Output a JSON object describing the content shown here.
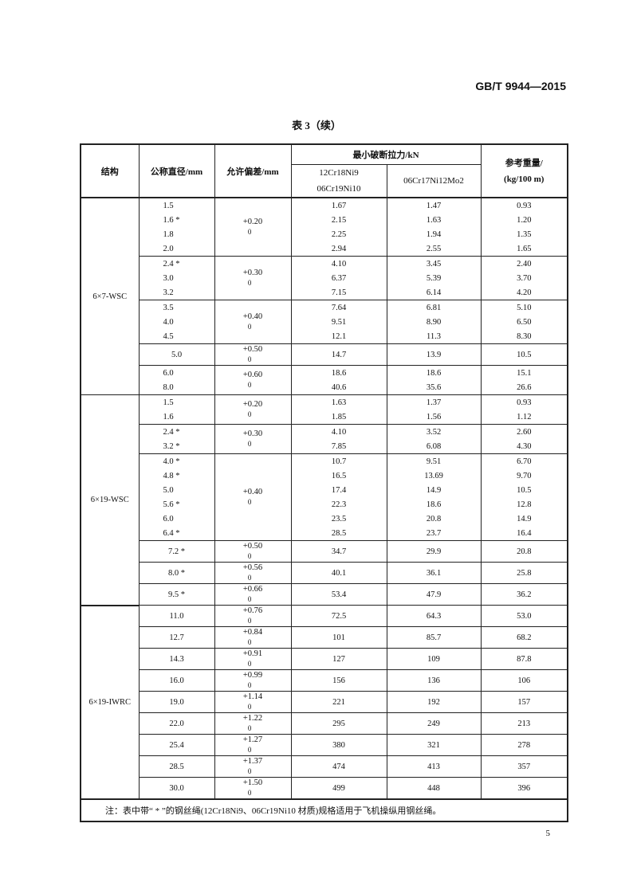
{
  "header": {
    "standard_code": "GB/T 9944—2015"
  },
  "caption": "表 3（续）",
  "table": {
    "headers": {
      "structure": "结构",
      "diameter": "公称直径/mm",
      "tolerance": "允许偏差/mm",
      "breaking_force": "最小破断拉力/kN",
      "material_a_line1": "12Cr18Ni9",
      "material_a_line2": "06Cr19Ni10",
      "material_b": "06Cr17Ni12Mo2",
      "weight_line1": "参考重量/",
      "weight_line2": "(kg/100 m)"
    },
    "groups": [
      {
        "structure": "6×7-WSC",
        "blocks": [
          {
            "tol_upper": "+0.20",
            "tol_lower": "0",
            "rows": [
              {
                "d": "1.5",
                "a": "1.67",
                "b": "1.47",
                "w": "0.93"
              },
              {
                "d": "1.6 *",
                "a": "2.15",
                "b": "1.63",
                "w": "1.20"
              },
              {
                "d": "1.8",
                "a": "2.25",
                "b": "1.94",
                "w": "1.35"
              },
              {
                "d": "2.0",
                "a": "2.94",
                "b": "2.55",
                "w": "1.65"
              }
            ]
          },
          {
            "tol_upper": "+0.30",
            "tol_lower": "0",
            "rows": [
              {
                "d": "2.4 *",
                "a": "4.10",
                "b": "3.45",
                "w": "2.40"
              },
              {
                "d": "3.0",
                "a": "6.37",
                "b": "5.39",
                "w": "3.70"
              },
              {
                "d": "3.2",
                "a": "7.15",
                "b": "6.14",
                "w": "4.20"
              }
            ]
          },
          {
            "tol_upper": "+0.40",
            "tol_lower": "0",
            "rows": [
              {
                "d": "3.5",
                "a": "7.64",
                "b": "6.81",
                "w": "5.10"
              },
              {
                "d": "4.0",
                "a": "9.51",
                "b": "8.90",
                "w": "6.50"
              },
              {
                "d": "4.5",
                "a": "12.1",
                "b": "11.3",
                "w": "8.30"
              }
            ]
          },
          {
            "tol_upper": "+0.50",
            "tol_lower": "0",
            "rows": [
              {
                "d": "5.0",
                "a": "14.7",
                "b": "13.9",
                "w": "10.5"
              }
            ]
          },
          {
            "tol_upper": "+0.60",
            "tol_lower": "0",
            "rows": [
              {
                "d": "6.0",
                "a": "18.6",
                "b": "18.6",
                "w": "15.1"
              },
              {
                "d": "8.0",
                "a": "40.6",
                "b": "35.6",
                "w": "26.6"
              }
            ]
          }
        ]
      },
      {
        "structure": "6×19-WSC",
        "blocks": [
          {
            "tol_upper": "+0.20",
            "tol_lower": "0",
            "rows": [
              {
                "d": "1.5",
                "a": "1.63",
                "b": "1.37",
                "w": "0.93"
              },
              {
                "d": "1.6",
                "a": "1.85",
                "b": "1.56",
                "w": "1.12"
              }
            ]
          },
          {
            "tol_upper": "+0.30",
            "tol_lower": "0",
            "rows": [
              {
                "d": "2.4 *",
                "a": "4.10",
                "b": "3.52",
                "w": "2.60"
              },
              {
                "d": "3.2 *",
                "a": "7.85",
                "b": "6.08",
                "w": "4.30"
              }
            ]
          },
          {
            "tol_upper": "+0.40",
            "tol_lower": "0",
            "rows": [
              {
                "d": "4.0 *",
                "a": "10.7",
                "b": "9.51",
                "w": "6.70"
              },
              {
                "d": "4.8 *",
                "a": "16.5",
                "b": "13.69",
                "w": "9.70"
              },
              {
                "d": "5.0",
                "a": "17.4",
                "b": "14.9",
                "w": "10.5"
              },
              {
                "d": "5.6 *",
                "a": "22.3",
                "b": "18.6",
                "w": "12.8"
              },
              {
                "d": "6.0",
                "a": "23.5",
                "b": "20.8",
                "w": "14.9"
              },
              {
                "d": "6.4 *",
                "a": "28.5",
                "b": "23.7",
                "w": "16.4"
              }
            ]
          },
          {
            "tol_upper": "+0.50",
            "tol_lower": "0",
            "rows": [
              {
                "d": "7.2 *",
                "a": "34.7",
                "b": "29.9",
                "w": "20.8"
              }
            ]
          },
          {
            "tol_upper": "+0.56",
            "tol_lower": "0",
            "rows": [
              {
                "d": "8.0 *",
                "a": "40.1",
                "b": "36.1",
                "w": "25.8"
              }
            ]
          },
          {
            "tol_upper": "+0.66",
            "tol_lower": "0",
            "rows": [
              {
                "d": "9.5 *",
                "a": "53.4",
                "b": "47.9",
                "w": "36.2"
              }
            ]
          }
        ]
      },
      {
        "structure": "6×19-IWRC",
        "blocks": [
          {
            "tol_upper": "+0.76",
            "tol_lower": "0",
            "rows": [
              {
                "d": "11.0",
                "a": "72.5",
                "b": "64.3",
                "w": "53.0"
              }
            ]
          },
          {
            "tol_upper": "+0.84",
            "tol_lower": "0",
            "rows": [
              {
                "d": "12.7",
                "a": "101",
                "b": "85.7",
                "w": "68.2"
              }
            ]
          },
          {
            "tol_upper": "+0.91",
            "tol_lower": "0",
            "rows": [
              {
                "d": "14.3",
                "a": "127",
                "b": "109",
                "w": "87.8"
              }
            ]
          },
          {
            "tol_upper": "+0.99",
            "tol_lower": "0",
            "rows": [
              {
                "d": "16.0",
                "a": "156",
                "b": "136",
                "w": "106"
              }
            ]
          },
          {
            "tol_upper": "+1.14",
            "tol_lower": "0",
            "rows": [
              {
                "d": "19.0",
                "a": "221",
                "b": "192",
                "w": "157"
              }
            ]
          },
          {
            "tol_upper": "+1.22",
            "tol_lower": "0",
            "rows": [
              {
                "d": "22.0",
                "a": "295",
                "b": "249",
                "w": "213"
              }
            ]
          },
          {
            "tol_upper": "+1.27",
            "tol_lower": "0",
            "rows": [
              {
                "d": "25.4",
                "a": "380",
                "b": "321",
                "w": "278"
              }
            ]
          },
          {
            "tol_upper": "+1.37",
            "tol_lower": "0",
            "rows": [
              {
                "d": "28.5",
                "a": "474",
                "b": "413",
                "w": "357"
              }
            ]
          },
          {
            "tol_upper": "+1.50",
            "tol_lower": "0",
            "rows": [
              {
                "d": "30.0",
                "a": "499",
                "b": "448",
                "w": "396"
              }
            ]
          }
        ]
      }
    ],
    "note": "注：表中带“ * ”的钢丝绳(12Cr18Ni9、06Cr19Ni10 材质)规格适用于飞机操纵用钢丝绳。"
  },
  "footer": {
    "page_number": "5"
  }
}
